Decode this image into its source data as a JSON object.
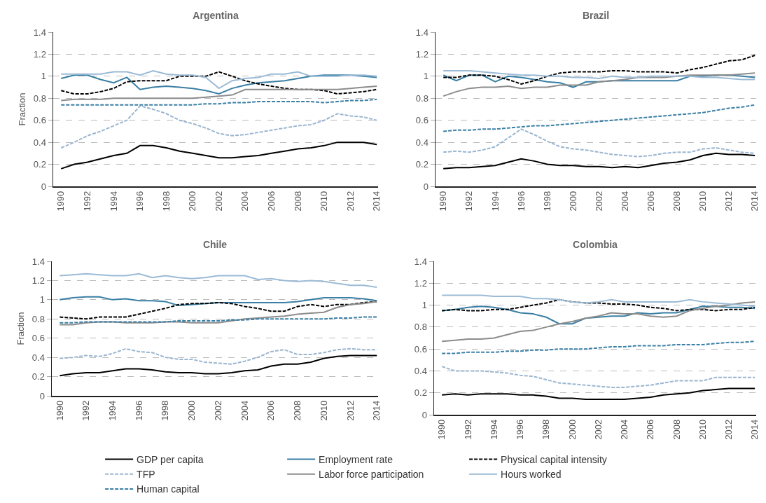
{
  "chart_data": [
    {
      "type": "line",
      "title": "Argentina",
      "ylabel": "Fraction",
      "x": [
        1990,
        1991,
        1992,
        1993,
        1994,
        1995,
        1996,
        1997,
        1998,
        1999,
        2000,
        2001,
        2002,
        2003,
        2004,
        2005,
        2006,
        2007,
        2008,
        2009,
        2010,
        2011,
        2012,
        2013,
        2014
      ],
      "xlim": [
        1989.4,
        2014.1
      ],
      "xticks": [
        1990,
        1992,
        1994,
        1996,
        1998,
        2000,
        2002,
        2004,
        2006,
        2008,
        2010,
        2012,
        2014
      ],
      "ylim": [
        0,
        1.4
      ],
      "yticks": [
        0,
        0.2,
        0.4,
        0.6,
        0.8,
        1,
        1.2,
        1.4
      ],
      "grid": "y",
      "series": [
        {
          "color": "#000000",
          "line_style": "solid",
          "values": [
            0.16,
            0.2,
            0.22,
            0.25,
            0.28,
            0.3,
            0.37,
            0.37,
            0.35,
            0.32,
            0.3,
            0.28,
            0.26,
            0.26,
            0.27,
            0.28,
            0.3,
            0.32,
            0.34,
            0.35,
            0.37,
            0.4,
            0.4,
            0.4,
            0.38
          ]
        },
        {
          "color": "#3a7fa5",
          "line_style": "solid",
          "values": [
            0.98,
            1.01,
            1.01,
            0.97,
            0.94,
            0.99,
            0.88,
            0.9,
            0.91,
            0.9,
            0.89,
            0.87,
            0.84,
            0.89,
            0.92,
            0.94,
            0.95,
            0.96,
            0.98,
            1.0,
            1.01,
            1.01,
            1.01,
            1.0,
            0.99
          ]
        },
        {
          "color": "#000000",
          "line_style": "dashed",
          "values": [
            0.87,
            0.84,
            0.84,
            0.86,
            0.89,
            0.95,
            0.96,
            0.96,
            0.96,
            1.0,
            1.0,
            1.0,
            1.04,
            1.0,
            0.96,
            0.93,
            0.91,
            0.89,
            0.88,
            0.88,
            0.87,
            0.84,
            0.85,
            0.86,
            0.88
          ]
        },
        {
          "color": "#9ab5d0",
          "line_style": "dashed",
          "values": [
            0.35,
            0.4,
            0.46,
            0.5,
            0.55,
            0.6,
            0.73,
            0.7,
            0.66,
            0.6,
            0.57,
            0.53,
            0.48,
            0.46,
            0.47,
            0.49,
            0.51,
            0.53,
            0.55,
            0.56,
            0.6,
            0.66,
            0.64,
            0.63,
            0.6
          ]
        },
        {
          "color": "#8c8c8c",
          "line_style": "solid",
          "values": [
            0.78,
            0.79,
            0.79,
            0.79,
            0.8,
            0.8,
            0.8,
            0.8,
            0.8,
            0.8,
            0.8,
            0.81,
            0.82,
            0.83,
            0.88,
            0.88,
            0.88,
            0.88,
            0.88,
            0.88,
            0.88,
            0.88,
            0.89,
            0.9,
            0.91
          ]
        },
        {
          "color": "#9bbbd6",
          "line_style": "solid",
          "values": [
            1.02,
            1.02,
            1.02,
            1.02,
            1.04,
            1.04,
            1.01,
            1.05,
            1.02,
            1.01,
            1.01,
            0.99,
            0.89,
            0.96,
            0.98,
            0.99,
            1.02,
            1.02,
            1.04,
            1.0,
            1.0,
            1.0,
            1.01,
            1.01,
            1.0
          ]
        },
        {
          "color": "#3a7fa5",
          "line_style": "dashed",
          "values": [
            0.74,
            0.74,
            0.74,
            0.74,
            0.74,
            0.74,
            0.74,
            0.74,
            0.74,
            0.74,
            0.74,
            0.75,
            0.75,
            0.76,
            0.76,
            0.77,
            0.77,
            0.77,
            0.77,
            0.77,
            0.76,
            0.77,
            0.78,
            0.78,
            0.79
          ]
        }
      ]
    },
    {
      "type": "line",
      "title": "Brazil",
      "x": [
        1990,
        1991,
        1992,
        1993,
        1994,
        1995,
        1996,
        1997,
        1998,
        1999,
        2000,
        2001,
        2002,
        2003,
        2004,
        2005,
        2006,
        2007,
        2008,
        2009,
        2010,
        2011,
        2012,
        2013,
        2014
      ],
      "xlim": [
        1989.4,
        2014.1
      ],
      "xticks": [
        1990,
        1992,
        1994,
        1996,
        1998,
        2000,
        2002,
        2004,
        2006,
        2008,
        2010,
        2012,
        2014
      ],
      "ylim": [
        0,
        1.4
      ],
      "yticks": [
        0,
        0.2,
        0.4,
        0.6,
        0.8,
        1,
        1.2,
        1.4
      ],
      "grid": "y",
      "series": [
        {
          "color": "#000000",
          "line_style": "solid",
          "values": [
            0.16,
            0.17,
            0.17,
            0.18,
            0.19,
            0.22,
            0.25,
            0.23,
            0.2,
            0.19,
            0.19,
            0.18,
            0.18,
            0.17,
            0.18,
            0.17,
            0.19,
            0.21,
            0.22,
            0.24,
            0.28,
            0.3,
            0.29,
            0.29,
            0.28
          ]
        },
        {
          "color": "#3a7fa5",
          "line_style": "solid",
          "values": [
            1.01,
            0.96,
            1.01,
            1.01,
            0.95,
            1.0,
            0.99,
            0.97,
            0.95,
            0.94,
            0.9,
            0.95,
            0.95,
            0.96,
            0.96,
            0.96,
            0.96,
            0.96,
            0.96,
            1.0,
            1.0,
            1.01,
            1.01,
            1.0,
            0.99
          ]
        },
        {
          "color": "#000000",
          "line_style": "dashed",
          "values": [
            0.99,
            0.99,
            1.01,
            1.01,
            1.0,
            0.97,
            0.93,
            0.96,
            1.0,
            1.03,
            1.04,
            1.04,
            1.04,
            1.05,
            1.05,
            1.04,
            1.04,
            1.04,
            1.03,
            1.06,
            1.08,
            1.11,
            1.14,
            1.15,
            1.19
          ]
        },
        {
          "color": "#9ab5d0",
          "line_style": "dashed",
          "values": [
            0.31,
            0.32,
            0.31,
            0.33,
            0.36,
            0.44,
            0.52,
            0.47,
            0.41,
            0.36,
            0.34,
            0.33,
            0.31,
            0.29,
            0.28,
            0.27,
            0.28,
            0.3,
            0.31,
            0.31,
            0.34,
            0.35,
            0.33,
            0.31,
            0.3
          ]
        },
        {
          "color": "#8c8c8c",
          "line_style": "solid",
          "values": [
            0.82,
            0.86,
            0.89,
            0.9,
            0.9,
            0.91,
            0.89,
            0.9,
            0.9,
            0.92,
            0.92,
            0.92,
            0.95,
            0.96,
            0.97,
            0.99,
            0.99,
            0.99,
            1.0,
            1.01,
            1.01,
            1.01,
            1.01,
            1.02,
            1.03
          ]
        },
        {
          "color": "#9bbbd6",
          "line_style": "solid",
          "values": [
            1.05,
            1.05,
            1.05,
            1.04,
            1.03,
            1.02,
            1.01,
            1.01,
            1.0,
            1.0,
            0.99,
            0.99,
            0.98,
            1.0,
            0.99,
            0.99,
            1.0,
            1.0,
            1.0,
            1.0,
            0.99,
            0.99,
            0.98,
            0.97,
            0.97
          ]
        },
        {
          "color": "#3a7fa5",
          "line_style": "dashed",
          "values": [
            0.5,
            0.51,
            0.51,
            0.52,
            0.52,
            0.53,
            0.54,
            0.55,
            0.55,
            0.56,
            0.57,
            0.58,
            0.59,
            0.6,
            0.61,
            0.62,
            0.63,
            0.64,
            0.65,
            0.66,
            0.67,
            0.69,
            0.71,
            0.72,
            0.74
          ]
        }
      ]
    },
    {
      "type": "line",
      "title": "Chile",
      "ylabel": "Fraction",
      "x": [
        1990,
        1991,
        1992,
        1993,
        1994,
        1995,
        1996,
        1997,
        1998,
        1999,
        2000,
        2001,
        2002,
        2003,
        2004,
        2005,
        2006,
        2007,
        2008,
        2009,
        2010,
        2011,
        2012,
        2013,
        2014
      ],
      "xlim": [
        1989.4,
        2014.1
      ],
      "xticks": [
        1990,
        1992,
        1994,
        1996,
        1998,
        2000,
        2002,
        2004,
        2006,
        2008,
        2010,
        2012,
        2014
      ],
      "ylim": [
        0,
        1.4
      ],
      "yticks": [
        0,
        0.2,
        0.4,
        0.6,
        0.8,
        1,
        1.2,
        1.4
      ],
      "grid": "y",
      "legend": "bottom",
      "series": [
        {
          "name": "GDP per capita",
          "color": "#000000",
          "line_style": "solid",
          "values": [
            0.21,
            0.23,
            0.24,
            0.24,
            0.26,
            0.28,
            0.28,
            0.27,
            0.25,
            0.24,
            0.24,
            0.23,
            0.23,
            0.24,
            0.26,
            0.27,
            0.31,
            0.33,
            0.33,
            0.35,
            0.39,
            0.41,
            0.42,
            0.42,
            0.42
          ]
        },
        {
          "name": "Employment rate",
          "color": "#3a7fa5",
          "line_style": "solid",
          "values": [
            1.0,
            1.02,
            1.03,
            1.03,
            1.0,
            1.01,
            0.99,
            0.99,
            0.98,
            0.94,
            0.95,
            0.96,
            0.97,
            0.97,
            0.97,
            0.97,
            0.97,
            0.97,
            0.98,
            1.0,
            1.02,
            1.02,
            1.02,
            1.01,
            0.99
          ]
        },
        {
          "name": "Physical capital intensity",
          "color": "#000000",
          "line_style": "dashed",
          "values": [
            0.82,
            0.81,
            0.8,
            0.82,
            0.82,
            0.82,
            0.85,
            0.88,
            0.91,
            0.95,
            0.96,
            0.96,
            0.97,
            0.96,
            0.93,
            0.91,
            0.88,
            0.88,
            0.93,
            0.95,
            0.93,
            0.95,
            0.95,
            0.97,
            0.98
          ]
        },
        {
          "name": "TFP",
          "color": "#9ab5d0",
          "line_style": "dashed",
          "values": [
            0.39,
            0.4,
            0.42,
            0.41,
            0.44,
            0.49,
            0.46,
            0.45,
            0.4,
            0.38,
            0.38,
            0.35,
            0.34,
            0.33,
            0.36,
            0.4,
            0.46,
            0.48,
            0.43,
            0.43,
            0.45,
            0.48,
            0.49,
            0.48,
            0.48
          ]
        },
        {
          "name": "Labor force participation",
          "color": "#8c8c8c",
          "line_style": "solid",
          "values": [
            0.74,
            0.74,
            0.76,
            0.77,
            0.77,
            0.76,
            0.76,
            0.76,
            0.77,
            0.77,
            0.76,
            0.76,
            0.76,
            0.78,
            0.8,
            0.81,
            0.82,
            0.83,
            0.85,
            0.86,
            0.87,
            0.92,
            0.95,
            0.96,
            0.98
          ]
        },
        {
          "name": "Hours worked",
          "color": "#9bbbd6",
          "line_style": "solid",
          "values": [
            1.25,
            1.26,
            1.27,
            1.26,
            1.25,
            1.25,
            1.27,
            1.23,
            1.25,
            1.23,
            1.22,
            1.23,
            1.25,
            1.25,
            1.25,
            1.21,
            1.22,
            1.2,
            1.19,
            1.2,
            1.19,
            1.17,
            1.15,
            1.15,
            1.13
          ]
        },
        {
          "name": "Human capital",
          "color": "#3a7fa5",
          "line_style": "dashed",
          "values": [
            0.76,
            0.76,
            0.77,
            0.77,
            0.77,
            0.77,
            0.77,
            0.77,
            0.77,
            0.78,
            0.78,
            0.78,
            0.78,
            0.79,
            0.79,
            0.8,
            0.8,
            0.8,
            0.8,
            0.8,
            0.8,
            0.81,
            0.81,
            0.82,
            0.82
          ]
        }
      ]
    },
    {
      "type": "line",
      "title": "Colombia",
      "x": [
        1990,
        1991,
        1992,
        1993,
        1994,
        1995,
        1996,
        1997,
        1998,
        1999,
        2000,
        2001,
        2002,
        2003,
        2004,
        2005,
        2006,
        2007,
        2008,
        2009,
        2010,
        2011,
        2012,
        2013,
        2014
      ],
      "xlim": [
        1989.4,
        2014.1
      ],
      "xticks": [
        1990,
        1992,
        1994,
        1996,
        1998,
        2000,
        2002,
        2004,
        2006,
        2008,
        2010,
        2012,
        2014
      ],
      "ylim": [
        0,
        1.4
      ],
      "yticks": [
        0,
        0.2,
        0.4,
        0.6,
        0.8,
        1,
        1.2,
        1.4
      ],
      "grid": "y",
      "series": [
        {
          "color": "#000000",
          "line_style": "solid",
          "values": [
            0.18,
            0.19,
            0.18,
            0.19,
            0.19,
            0.19,
            0.18,
            0.18,
            0.17,
            0.15,
            0.15,
            0.14,
            0.14,
            0.14,
            0.14,
            0.15,
            0.16,
            0.18,
            0.19,
            0.2,
            0.22,
            0.23,
            0.24,
            0.24,
            0.24
          ]
        },
        {
          "color": "#3a7fa5",
          "line_style": "solid",
          "values": [
            0.95,
            0.96,
            0.98,
            0.99,
            0.98,
            0.96,
            0.93,
            0.92,
            0.89,
            0.83,
            0.83,
            0.88,
            0.89,
            0.9,
            0.9,
            0.93,
            0.92,
            0.93,
            0.93,
            0.96,
            0.99,
            0.99,
            0.98,
            0.98,
            0.97
          ]
        },
        {
          "color": "#000000",
          "line_style": "dashed",
          "values": [
            0.95,
            0.96,
            0.95,
            0.95,
            0.96,
            0.96,
            0.98,
            1.0,
            1.02,
            1.05,
            1.03,
            1.02,
            1.02,
            1.01,
            1.01,
            1.0,
            0.98,
            0.97,
            0.95,
            0.96,
            0.96,
            0.95,
            0.96,
            0.96,
            0.98
          ]
        },
        {
          "color": "#9ab5d0",
          "line_style": "dashed",
          "values": [
            0.44,
            0.4,
            0.4,
            0.4,
            0.39,
            0.38,
            0.36,
            0.35,
            0.32,
            0.29,
            0.28,
            0.27,
            0.26,
            0.25,
            0.25,
            0.26,
            0.27,
            0.29,
            0.31,
            0.31,
            0.31,
            0.34,
            0.34,
            0.34,
            0.34
          ]
        },
        {
          "color": "#8c8c8c",
          "line_style": "solid",
          "values": [
            0.67,
            0.68,
            0.69,
            0.69,
            0.7,
            0.73,
            0.76,
            0.77,
            0.8,
            0.83,
            0.85,
            0.88,
            0.9,
            0.93,
            0.92,
            0.92,
            0.9,
            0.89,
            0.9,
            0.95,
            0.97,
            0.99,
            1.0,
            1.02,
            1.03
          ]
        },
        {
          "color": "#9bbbd6",
          "line_style": "solid",
          "values": [
            1.09,
            1.09,
            1.09,
            1.09,
            1.08,
            1.08,
            1.08,
            1.06,
            1.06,
            1.05,
            1.03,
            1.02,
            1.03,
            1.05,
            1.03,
            1.03,
            1.03,
            1.03,
            1.03,
            1.05,
            1.03,
            1.02,
            1.01,
            1.0,
            0.99
          ]
        },
        {
          "color": "#3a7fa5",
          "line_style": "dashed",
          "values": [
            0.56,
            0.56,
            0.57,
            0.57,
            0.57,
            0.58,
            0.58,
            0.59,
            0.59,
            0.6,
            0.6,
            0.6,
            0.61,
            0.62,
            0.62,
            0.63,
            0.63,
            0.63,
            0.64,
            0.64,
            0.64,
            0.65,
            0.66,
            0.66,
            0.67
          ]
        }
      ]
    }
  ]
}
